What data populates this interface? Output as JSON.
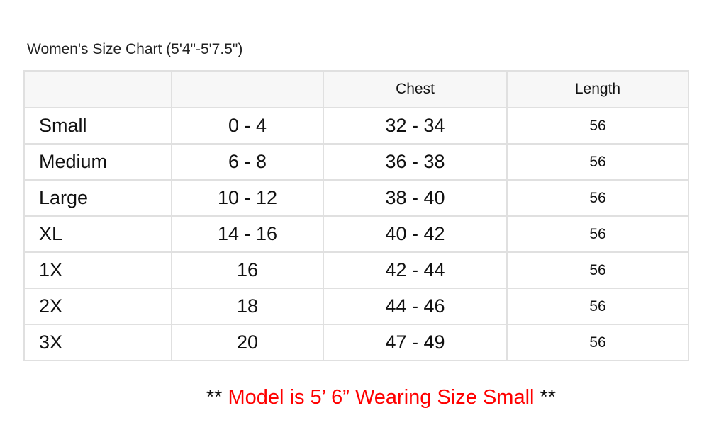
{
  "title": "Women's Size Chart (5'4\"-5'7.5\")",
  "table": {
    "headers": [
      "",
      "",
      "Chest",
      "Length"
    ],
    "rows": [
      [
        "Small",
        "0 - 4",
        "32 - 34",
        "56"
      ],
      [
        "Medium",
        "6 - 8",
        "36 - 38",
        "56"
      ],
      [
        "Large",
        "10 - 12",
        "38 - 40",
        "56"
      ],
      [
        "XL",
        "14 - 16",
        "40 - 42",
        "56"
      ],
      [
        "1X",
        "16",
        "42 - 44",
        "56"
      ],
      [
        "2X",
        "18",
        "44 - 46",
        "56"
      ],
      [
        "3X",
        "20",
        "47 - 49",
        "56"
      ]
    ]
  },
  "note": {
    "prefix": "** ",
    "text": "Model is 5’ 6” Wearing Size Small",
    "suffix": " **",
    "color": "#ff0000"
  }
}
